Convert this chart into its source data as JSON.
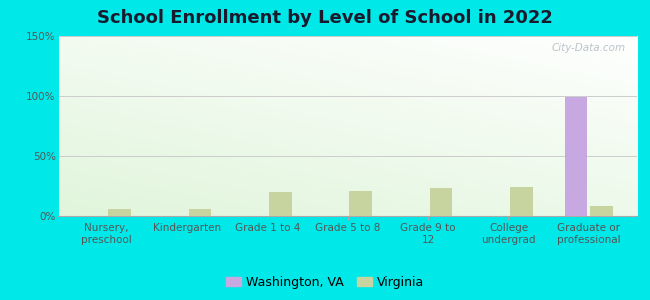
{
  "title": "School Enrollment by Level of School in 2022",
  "categories": [
    "Nursery,\npreschool",
    "Kindergarten",
    "Grade 1 to 4",
    "Grade 5 to 8",
    "Grade 9 to\n12",
    "College\nundergrad",
    "Graduate or\nprofessional"
  ],
  "washington_values": [
    0,
    0,
    0,
    0,
    0,
    0,
    99.5
  ],
  "virginia_values": [
    6,
    6,
    20,
    21,
    23,
    24,
    8
  ],
  "washington_color": "#c8a8e0",
  "virginia_color": "#c8d4a0",
  "background_color": "#00e8e8",
  "ylim": [
    0,
    150
  ],
  "yticks": [
    0,
    50,
    100,
    150
  ],
  "ytick_labels": [
    "0%",
    "50%",
    "100%",
    "150%"
  ],
  "bar_width": 0.28,
  "title_fontsize": 13,
  "tick_fontsize": 7.5,
  "legend_fontsize": 9,
  "watermark_text": "City-Data.com"
}
